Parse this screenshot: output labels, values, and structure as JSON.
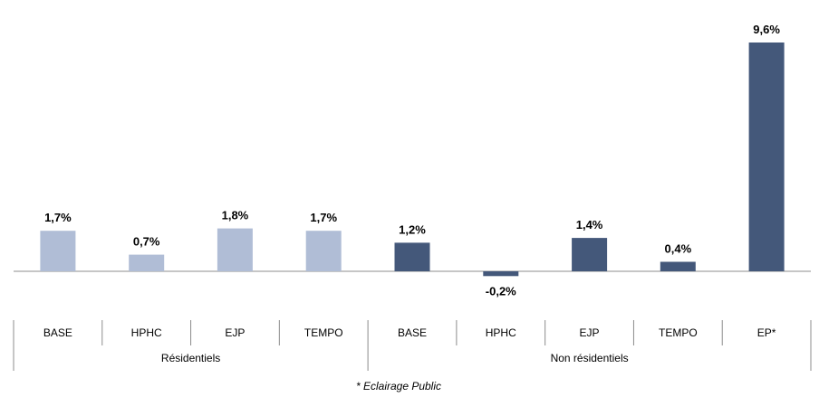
{
  "chart_data": {
    "type": "bar",
    "categories": [
      "BASE",
      "HPHC",
      "EJP",
      "TEMPO",
      "BASE",
      "HPHC",
      "EJP",
      "TEMPO",
      "EP*"
    ],
    "values": [
      1.7,
      0.7,
      1.8,
      1.7,
      1.2,
      -0.2,
      1.4,
      0.4,
      9.6
    ],
    "value_labels": [
      "1,7%",
      "0,7%",
      "1,8%",
      "1,7%",
      "1,2%",
      "-0,2%",
      "1,4%",
      "0,4%",
      "9,6%"
    ],
    "groups": [
      {
        "label": "Résidentiels",
        "start": 0,
        "end": 3,
        "color": "#b0bdd6"
      },
      {
        "label": "Non résidentiels",
        "start": 4,
        "end": 8,
        "color": "#44587a"
      }
    ],
    "ylim": [
      -0.2,
      9.6
    ],
    "grid": false,
    "legend": "none"
  },
  "footnote": "* Eclairage Public"
}
